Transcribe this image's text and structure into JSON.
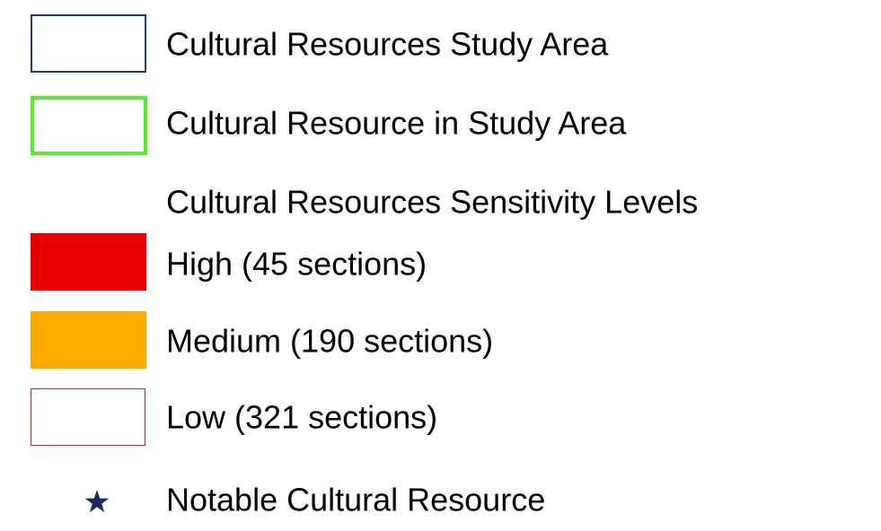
{
  "legend": {
    "items": [
      {
        "label": "Cultural Resources Study Area"
      },
      {
        "label": "Cultural Resource in Study Area"
      },
      {
        "label": "Cultural Resources Sensitivity Levels"
      },
      {
        "label": "High (45 sections)"
      },
      {
        "label": "Medium (190 sections)"
      },
      {
        "label": "Low (321 sections)"
      },
      {
        "label": "Notable Cultural Resource"
      }
    ]
  }
}
